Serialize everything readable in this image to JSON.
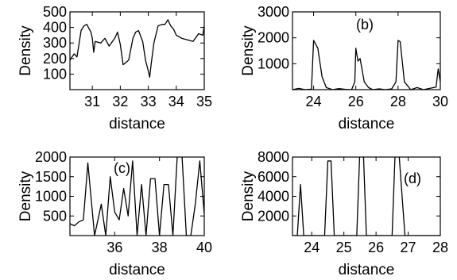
{
  "chart_data": [
    {
      "type": "line",
      "panel_label": "",
      "xlabel": "distance",
      "ylabel": "Density",
      "xlim": [
        30.2,
        35.0
      ],
      "ylim": [
        0,
        500
      ],
      "xticks": [
        31,
        32,
        33,
        34,
        35
      ],
      "yticks": [
        100,
        200,
        300,
        400,
        500
      ],
      "x": [
        30.2,
        30.35,
        30.45,
        30.6,
        30.7,
        30.8,
        30.95,
        31.0,
        31.05,
        31.1,
        31.3,
        31.45,
        31.6,
        31.8,
        31.9,
        32.0,
        32.1,
        32.3,
        32.45,
        32.55,
        32.65,
        32.8,
        32.9,
        33.0,
        33.05,
        33.1,
        33.2,
        33.35,
        33.5,
        33.6,
        33.7,
        33.8,
        33.9,
        34.0,
        34.2,
        34.4,
        34.6,
        34.8,
        34.95,
        35.0
      ],
      "values": [
        190,
        230,
        210,
        380,
        410,
        420,
        370,
        330,
        240,
        310,
        300,
        330,
        280,
        330,
        370,
        290,
        160,
        190,
        330,
        370,
        380,
        310,
        190,
        120,
        80,
        160,
        300,
        410,
        420,
        420,
        450,
        410,
        390,
        350,
        330,
        320,
        310,
        360,
        350,
        410
      ]
    },
    {
      "type": "line",
      "panel_label": "(b)",
      "xlabel": "distance",
      "ylabel": "Density",
      "xlim": [
        23.0,
        30.0
      ],
      "ylim": [
        0,
        3000
      ],
      "xticks": [
        24,
        26,
        28,
        30
      ],
      "yticks": [
        1000,
        2000,
        3000
      ],
      "x": [
        23.0,
        23.3,
        23.6,
        23.9,
        24.0,
        24.2,
        24.4,
        24.6,
        24.9,
        25.2,
        25.5,
        25.8,
        25.95,
        26.0,
        26.1,
        26.2,
        26.4,
        26.6,
        26.8,
        27.1,
        27.4,
        27.7,
        27.9,
        28.0,
        28.1,
        28.3,
        28.6,
        28.9,
        29.2,
        29.5,
        29.8,
        29.9,
        30.0
      ],
      "values": [
        0,
        50,
        0,
        20,
        1900,
        1600,
        500,
        80,
        0,
        40,
        10,
        0,
        300,
        1600,
        1100,
        1200,
        300,
        80,
        0,
        30,
        0,
        30,
        300,
        1900,
        1850,
        300,
        0,
        80,
        0,
        50,
        100,
        800,
        300
      ]
    },
    {
      "type": "line",
      "panel_label": "(c)",
      "xlabel": "distance",
      "ylabel": "Density",
      "xlim": [
        34.0,
        40.0
      ],
      "ylim": [
        0,
        2000
      ],
      "xticks": [
        36,
        38,
        40
      ],
      "yticks": [
        500,
        1000,
        1500,
        2000
      ],
      "x": [
        34.0,
        34.2,
        34.4,
        34.6,
        34.8,
        35.1,
        35.4,
        35.6,
        35.8,
        36.0,
        36.2,
        36.4,
        36.6,
        36.8,
        37.0,
        37.2,
        37.4,
        37.6,
        37.8,
        38.0,
        38.2,
        38.4,
        38.6,
        38.8,
        39.0,
        39.2,
        39.4,
        39.6,
        39.8,
        40.0
      ],
      "values": [
        300,
        250,
        350,
        400,
        1850,
        0,
        800,
        0,
        1500,
        600,
        400,
        1200,
        500,
        1900,
        0,
        1300,
        0,
        1450,
        1450,
        0,
        1300,
        1300,
        0,
        2100,
        2100,
        0,
        0,
        800,
        1900,
        550
      ]
    },
    {
      "type": "line",
      "panel_label": "(d)",
      "xlabel": "distance",
      "ylabel": "Density",
      "xlim": [
        23.4,
        28.0
      ],
      "ylim": [
        0,
        8000
      ],
      "xticks": [
        24,
        25,
        26,
        27,
        28
      ],
      "yticks": [
        2000,
        4000,
        6000,
        8000
      ],
      "x": [
        23.4,
        23.55,
        23.65,
        23.75,
        23.9,
        24.1,
        24.3,
        24.4,
        24.5,
        24.6,
        24.7,
        24.9,
        25.1,
        25.3,
        25.4,
        25.5,
        25.6,
        25.7,
        25.9,
        26.1,
        26.3,
        26.4,
        26.5,
        26.6,
        26.7,
        26.9,
        27.1,
        27.3,
        27.5,
        27.7,
        27.9,
        28.0
      ],
      "values": [
        0,
        0,
        5200,
        0,
        0,
        0,
        0,
        0,
        7600,
        7600,
        0,
        0,
        0,
        0,
        0,
        9000,
        9000,
        0,
        0,
        0,
        0,
        0,
        0,
        9000,
        9000,
        0,
        0,
        0,
        0,
        0,
        0,
        0
      ]
    }
  ]
}
